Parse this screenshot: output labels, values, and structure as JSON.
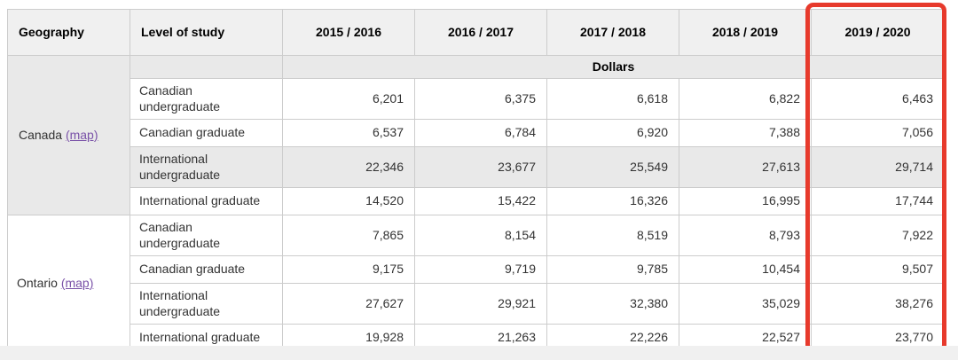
{
  "colors": {
    "annotation_red": "#e73a2c",
    "link_purple": "#7a52a8",
    "header_bg": "#f0f0f0",
    "unit_row_bg": "#e9e9e9",
    "highlight_row_bg": "#e9e9e9",
    "border": "#cccccc"
  },
  "table": {
    "columns": [
      "Geography",
      "Level of study",
      "2015 / 2016",
      "2016 / 2017",
      "2017 / 2018",
      "2018 / 2019",
      "2019 / 2020"
    ],
    "unit_label": "Dollars",
    "highlighted_column": "2019 / 2020",
    "groups": [
      {
        "geography": "Canada",
        "map_label": "(map)",
        "rows": [
          {
            "level": "Canadian undergraduate",
            "values": [
              "6,201",
              "6,375",
              "6,618",
              "6,822",
              "6,463"
            ],
            "highlighted": false
          },
          {
            "level": "Canadian graduate",
            "values": [
              "6,537",
              "6,784",
              "6,920",
              "7,388",
              "7,056"
            ],
            "highlighted": false
          },
          {
            "level": "International undergraduate",
            "values": [
              "22,346",
              "23,677",
              "25,549",
              "27,613",
              "29,714"
            ],
            "highlighted": true
          },
          {
            "level": "International graduate",
            "values": [
              "14,520",
              "15,422",
              "16,326",
              "16,995",
              "17,744"
            ],
            "highlighted": false
          }
        ]
      },
      {
        "geography": "Ontario",
        "map_label": "(map)",
        "rows": [
          {
            "level": "Canadian undergraduate",
            "values": [
              "7,865",
              "8,154",
              "8,519",
              "8,793",
              "7,922"
            ],
            "highlighted": false
          },
          {
            "level": "Canadian graduate",
            "values": [
              "9,175",
              "9,719",
              "9,785",
              "10,454",
              "9,507"
            ],
            "highlighted": false
          },
          {
            "level": "International undergraduate",
            "values": [
              "27,627",
              "29,921",
              "32,380",
              "35,029",
              "38,276"
            ],
            "highlighted": false
          },
          {
            "level": "International graduate",
            "values": [
              "19,928",
              "21,263",
              "22,226",
              "22,527",
              "23,770"
            ],
            "highlighted": false
          }
        ]
      }
    ]
  }
}
